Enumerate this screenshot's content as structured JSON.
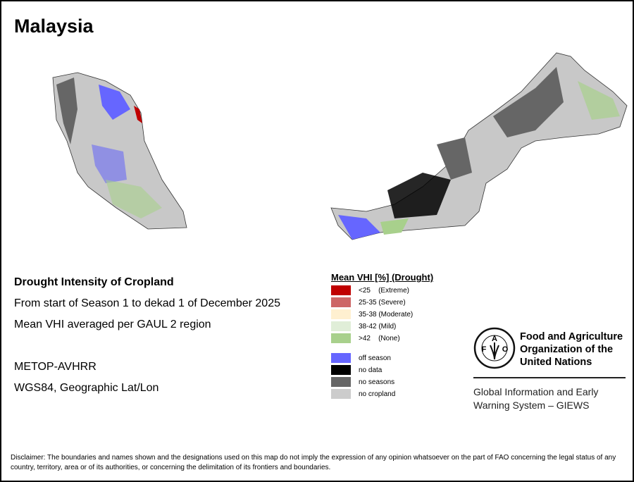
{
  "title": "Malaysia",
  "info": {
    "heading": "Drought Intensity of Cropland",
    "period": "From start of Season 1 to dekad 1 of December 2025",
    "method": "Mean VHI averaged per GAUL 2 region",
    "sensor": "METOP-AVHRR",
    "projection": "WGS84, Geographic Lat/Lon"
  },
  "legend": {
    "title": "Mean VHI [%] (Drought)",
    "items": [
      {
        "label": "<25    (Extreme)",
        "color": "#c00000"
      },
      {
        "label": "25-35 (Severe)",
        "color": "#cd6666"
      },
      {
        "label": "35-38 (Moderate)",
        "color": "#fff0d0"
      },
      {
        "label": "38-42 (Mild)",
        "color": "#e0eed8"
      },
      {
        "label": ">42    (None)",
        "color": "#a8d08c"
      }
    ],
    "other": [
      {
        "label": "off season",
        "color": "#6666ff"
      },
      {
        "label": "no data",
        "color": "#000000"
      },
      {
        "label": "no seasons",
        "color": "#666666"
      },
      {
        "label": "no cropland",
        "color": "#cccccc"
      }
    ]
  },
  "logo": {
    "org_line1": "Food and Agriculture",
    "org_line2": "Organization of the",
    "org_line3": "United Nations",
    "emblem_text": "FAO FIAT PANIS",
    "giews_line1": "Global Information and Early",
    "giews_line2": "Warning System – GIEWS"
  },
  "disclaimer": "Disclaimer: The boundaries and names shown and the designations used on this map do not imply the expression of any opinion whatsoever on the part of FAO concerning the legal status of any country, territory, area or of its authorities, or concerning the delimitation of its frontiers and boundaries."
}
